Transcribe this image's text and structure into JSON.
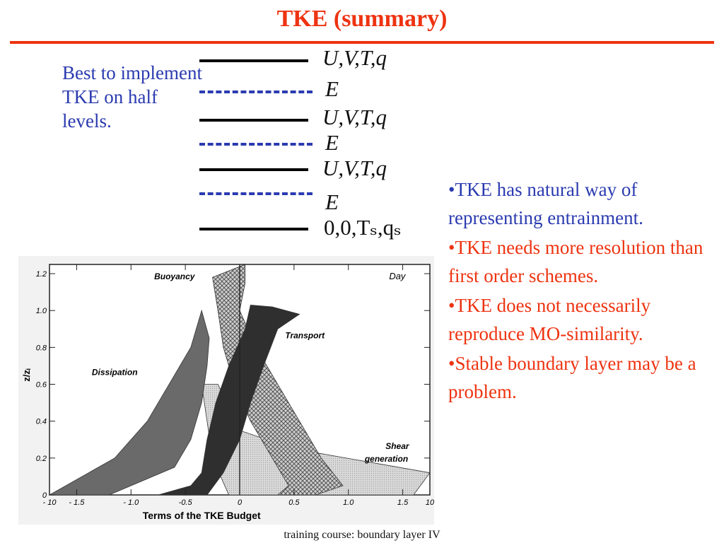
{
  "slide": {
    "title": "TKE (summary)",
    "left_note": "Best to implement TKE on half levels.",
    "levels": [
      {
        "kind": "full",
        "label": "U,V,T,q"
      },
      {
        "kind": "half",
        "label": "E"
      },
      {
        "kind": "full",
        "label": "U,V,T,q"
      },
      {
        "kind": "half",
        "label": "E"
      },
      {
        "kind": "full",
        "label": "U,V,T,q"
      },
      {
        "kind": "half",
        "label": "E"
      },
      {
        "kind": "surface",
        "label": "0,0,Tₛ,qₛ"
      }
    ],
    "bullets": [
      {
        "color": "blue",
        "text": "•TKE has natural way of representing entrainment."
      },
      {
        "color": "red",
        "text": "•TKE needs more resolution than first order schemes."
      },
      {
        "color": "red",
        "text": "•TKE does not necessarily reproduce MO-similarity."
      },
      {
        "color": "red",
        "text": "•Stable boundary layer may be a problem."
      }
    ],
    "footer": "training course: boundary layer IV"
  },
  "colors": {
    "title_red": "#ee3311",
    "blue": "#2b3bb0",
    "black": "#000000"
  },
  "chart_data": {
    "type": "area",
    "title": "",
    "corner_label": "Day",
    "xlabel": "Terms of the TKE Budget",
    "ylabel": "z/zᵢ",
    "xlim": [
      -1.75,
      1.75
    ],
    "ylim": [
      0,
      1.25
    ],
    "x_ticks": [
      "- 10",
      "- 1.5",
      "- 1.0",
      "-0.5",
      "0",
      "0.5",
      "1.0",
      "1.5",
      "10"
    ],
    "y_ticks": [
      "0",
      "0.2",
      "0.4",
      "0.6",
      "0.8",
      "1.0",
      "1.2"
    ],
    "series": [
      {
        "name": "Buoyancy",
        "color": "#8c8c8c",
        "pattern": "crosshatch",
        "left": [
          [
            -0.25,
            1.18
          ],
          [
            -0.2,
            1.0
          ],
          [
            -0.15,
            0.8
          ],
          [
            -0.05,
            0.6
          ],
          [
            0.1,
            0.4
          ],
          [
            0.3,
            0.2
          ],
          [
            0.45,
            0.05
          ],
          [
            0.35,
            0.0
          ]
        ],
        "right": [
          [
            0.05,
            1.25
          ],
          [
            0.05,
            1.15
          ],
          [
            0.0,
            1.0
          ],
          [
            0.15,
            0.8
          ],
          [
            0.35,
            0.6
          ],
          [
            0.55,
            0.4
          ],
          [
            0.75,
            0.2
          ],
          [
            0.95,
            0.05
          ],
          [
            0.7,
            0.0
          ]
        ]
      },
      {
        "name": "Dissipation",
        "color": "#6a6a6a",
        "pattern": "solid",
        "left": [
          [
            -0.35,
            1.0
          ],
          [
            -0.45,
            0.8
          ],
          [
            -0.65,
            0.6
          ],
          [
            -0.85,
            0.4
          ],
          [
            -1.15,
            0.2
          ],
          [
            -1.75,
            0.0
          ]
        ],
        "right": [
          [
            -0.28,
            0.85
          ],
          [
            -0.3,
            0.7
          ],
          [
            -0.35,
            0.5
          ],
          [
            -0.45,
            0.3
          ],
          [
            -0.6,
            0.15
          ],
          [
            -1.2,
            0.0
          ]
        ]
      },
      {
        "name": "Transport",
        "color": "#2f2f2f",
        "pattern": "solid",
        "left": [
          [
            0.1,
            1.03
          ],
          [
            0.05,
            0.9
          ],
          [
            -0.1,
            0.7
          ],
          [
            -0.22,
            0.5
          ],
          [
            -0.3,
            0.3
          ],
          [
            -0.35,
            0.12
          ],
          [
            -0.45,
            0.05
          ],
          [
            -0.75,
            0.0
          ]
        ],
        "right": [
          [
            0.3,
            1.02
          ],
          [
            0.55,
            0.98
          ],
          [
            0.35,
            0.9
          ],
          [
            0.22,
            0.7
          ],
          [
            0.1,
            0.5
          ],
          [
            0.0,
            0.3
          ],
          [
            -0.15,
            0.12
          ],
          [
            -0.3,
            0.0
          ]
        ]
      },
      {
        "name": "Shear generation",
        "color": "#c8c8c8",
        "pattern": "light",
        "left": [
          [
            -0.35,
            0.6
          ],
          [
            -0.3,
            0.4
          ],
          [
            -0.25,
            0.2
          ],
          [
            -0.1,
            0.0
          ]
        ],
        "right": [
          [
            -0.2,
            0.6
          ],
          [
            0.0,
            0.35
          ],
          [
            0.5,
            0.25
          ],
          [
            1.75,
            0.12
          ],
          [
            1.6,
            0.0
          ]
        ]
      }
    ],
    "labels": [
      {
        "text": "Buoyancy",
        "x": -0.6,
        "y": 1.17
      },
      {
        "text": "Transport",
        "x": 0.6,
        "y": 0.85
      },
      {
        "text": "Dissipation",
        "x": -1.15,
        "y": 0.65
      },
      {
        "text": "Shear",
        "x": 1.45,
        "y": 0.25
      },
      {
        "text": "generation",
        "x": 1.35,
        "y": 0.18
      }
    ]
  }
}
